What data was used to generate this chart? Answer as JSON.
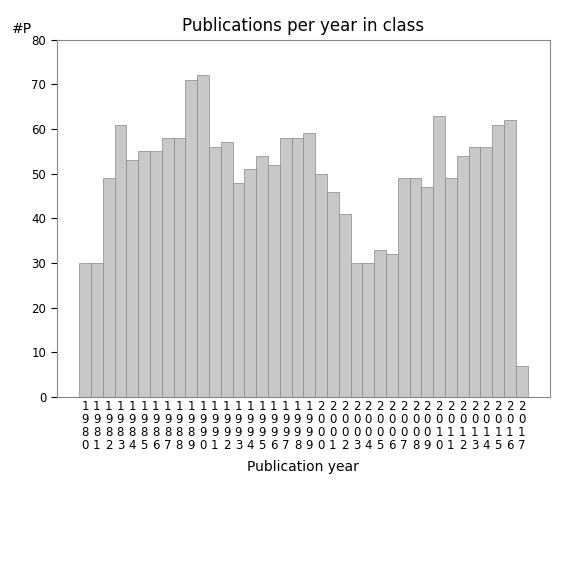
{
  "title": "Publications per year in class",
  "xlabel": "Publication year",
  "ylabel": "#P",
  "years": [
    1980,
    1981,
    1982,
    1983,
    1984,
    1985,
    1986,
    1987,
    1988,
    1989,
    1990,
    1991,
    1992,
    1993,
    1994,
    1995,
    1996,
    1997,
    1998,
    1999,
    2000,
    2001,
    2002,
    2003,
    2004,
    2005,
    2006,
    2007,
    2008,
    2009,
    2010,
    2011,
    2012,
    2013,
    2014,
    2015,
    2016,
    2017
  ],
  "values": [
    30,
    30,
    49,
    61,
    53,
    55,
    55,
    58,
    58,
    71,
    72,
    56,
    57,
    48,
    51,
    54,
    52,
    58,
    58,
    59,
    50,
    46,
    41,
    30,
    30,
    33,
    32,
    49,
    49,
    47,
    63,
    49,
    54,
    56,
    56,
    61,
    62,
    7
  ],
  "bar_color": "#c8c8c8",
  "bar_edge_color": "#888888",
  "bar_edge_width": 0.5,
  "ylim": [
    0,
    80
  ],
  "yticks": [
    0,
    10,
    20,
    30,
    40,
    50,
    60,
    70,
    80
  ],
  "bg_color": "#ffffff",
  "title_fontsize": 12,
  "axis_label_fontsize": 10,
  "tick_label_fontsize": 8.5
}
